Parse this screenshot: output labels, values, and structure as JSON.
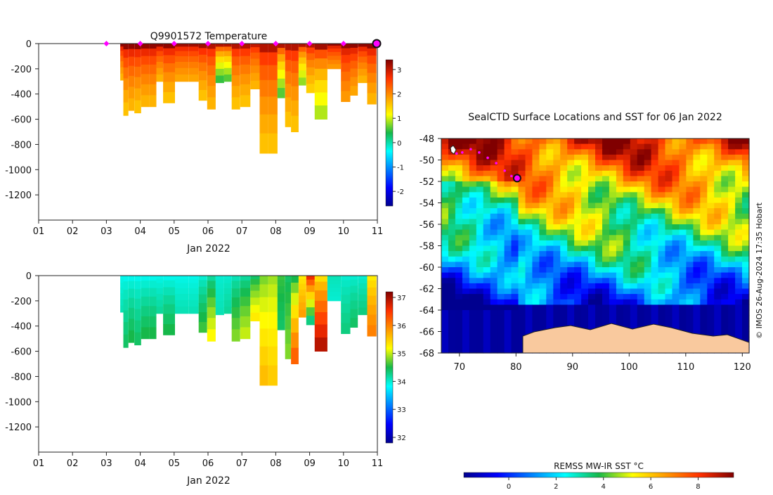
{
  "chart_data": [
    {
      "id": "temperature",
      "type": "heatmap",
      "title": "Q9901572  Temperature",
      "xlabel": "Jan 2022",
      "ylabel": "",
      "x_ticks": [
        "01",
        "02",
        "03",
        "04",
        "05",
        "06",
        "07",
        "08",
        "09",
        "10",
        "11"
      ],
      "y_ticks": [
        "0",
        "-200",
        "-400",
        "-600",
        "-800",
        "-1000",
        "-1200"
      ],
      "xlim": [
        1,
        11
      ],
      "ylim": [
        -1400,
        0
      ],
      "colorbar": {
        "ticks": [
          "3",
          "2",
          "1",
          "0",
          "-1",
          "-2"
        ],
        "range": [
          -2.6,
          3.4
        ]
      },
      "markers_days": [
        3,
        4,
        5,
        6,
        7,
        8,
        9,
        10
      ],
      "current_marker_day": 11,
      "profiles": [
        {
          "day": 3.45,
          "depth": 290,
          "surf": 3.3,
          "deep": 1.7
        },
        {
          "day": 3.55,
          "depth": 570,
          "surf": 3.3,
          "deep": 1.6
        },
        {
          "day": 3.75,
          "depth": 530,
          "surf": 3.3,
          "deep": 1.7
        },
        {
          "day": 3.9,
          "depth": 550,
          "surf": 3.3,
          "deep": 1.6
        },
        {
          "day": 4.15,
          "depth": 500,
          "surf": 3.3,
          "deep": 1.7
        },
        {
          "day": 4.4,
          "depth": 500,
          "surf": 3.3,
          "deep": 1.7
        },
        {
          "day": 4.55,
          "depth": 300,
          "surf": 3.3,
          "deep": 1.7
        },
        {
          "day": 4.8,
          "depth": 470,
          "surf": 3.3,
          "deep": 1.6
        },
        {
          "day": 5.25,
          "depth": 300,
          "surf": 3.2,
          "deep": 1.8
        },
        {
          "day": 5.6,
          "depth": 300,
          "surf": 3.2,
          "deep": 1.8
        },
        {
          "day": 5.85,
          "depth": 450,
          "surf": 3.2,
          "deep": 1.6
        },
        {
          "day": 6.1,
          "depth": 520,
          "surf": 3.1,
          "deep": 1.7
        },
        {
          "day": 6.35,
          "depth": 310,
          "surf": 3.1,
          "deep": 0.5
        },
        {
          "day": 6.6,
          "depth": 300,
          "surf": 3.1,
          "deep": 0.6
        },
        {
          "day": 6.8,
          "depth": 520,
          "surf": 3.1,
          "deep": 1.6
        },
        {
          "day": 7.1,
          "depth": 500,
          "surf": 3.1,
          "deep": 1.6
        },
        {
          "day": 7.4,
          "depth": 360,
          "surf": 3.0,
          "deep": 1.7
        },
        {
          "day": 7.65,
          "depth": 870,
          "surf": 3.1,
          "deep": 1.6
        },
        {
          "day": 7.9,
          "depth": 870,
          "surf": 3.1,
          "deep": 1.6
        },
        {
          "day": 8.2,
          "depth": 430,
          "surf": 3.1,
          "deep": 0.6
        },
        {
          "day": 8.35,
          "depth": 660,
          "surf": 3.1,
          "deep": 1.6
        },
        {
          "day": 8.55,
          "depth": 700,
          "surf": 3.1,
          "deep": 1.6
        },
        {
          "day": 8.8,
          "depth": 330,
          "surf": 3.1,
          "deep": 0.8
        },
        {
          "day": 9.0,
          "depth": 390,
          "surf": 3.1,
          "deep": 1.5
        },
        {
          "day": 9.3,
          "depth": 600,
          "surf": 3.2,
          "deep": 0.9
        },
        {
          "day": 9.75,
          "depth": 200,
          "surf": 3.3,
          "deep": 1.9
        },
        {
          "day": 10.1,
          "depth": 460,
          "surf": 3.3,
          "deep": 1.9
        },
        {
          "day": 10.3,
          "depth": 410,
          "surf": 3.3,
          "deep": 1.8
        },
        {
          "day": 10.55,
          "depth": 310,
          "surf": 3.3,
          "deep": 1.7
        },
        {
          "day": 10.85,
          "depth": 480,
          "surf": 3.3,
          "deep": 1.7
        }
      ]
    },
    {
      "id": "salinity",
      "type": "heatmap",
      "title": "",
      "xlabel": "Jan 2022",
      "ylabel": "",
      "x_ticks": [
        "01",
        "02",
        "03",
        "04",
        "05",
        "06",
        "07",
        "08",
        "09",
        "10",
        "11"
      ],
      "y_ticks": [
        "0",
        "-200",
        "-400",
        "-600",
        "-800",
        "-1000",
        "-1200"
      ],
      "xlim": [
        1,
        11
      ],
      "ylim": [
        -1400,
        0
      ],
      "colorbar": {
        "ticks": [
          "37",
          "36",
          "35",
          "34",
          "33",
          "32"
        ],
        "range": [
          31.8,
          37.2
        ]
      },
      "profiles": [
        {
          "day": 3.45,
          "depth": 290,
          "surf": 33.9,
          "deep": 34.1
        },
        {
          "day": 3.55,
          "depth": 570,
          "surf": 33.9,
          "deep": 34.4
        },
        {
          "day": 3.75,
          "depth": 530,
          "surf": 33.9,
          "deep": 34.5
        },
        {
          "day": 3.9,
          "depth": 550,
          "surf": 33.9,
          "deep": 34.4
        },
        {
          "day": 4.15,
          "depth": 500,
          "surf": 33.9,
          "deep": 34.5
        },
        {
          "day": 4.4,
          "depth": 500,
          "surf": 33.9,
          "deep": 34.5
        },
        {
          "day": 4.55,
          "depth": 300,
          "surf": 33.9,
          "deep": 34.2
        },
        {
          "day": 4.8,
          "depth": 470,
          "surf": 33.9,
          "deep": 34.5
        },
        {
          "day": 5.25,
          "depth": 300,
          "surf": 33.9,
          "deep": 34.1
        },
        {
          "day": 5.6,
          "depth": 300,
          "surf": 33.9,
          "deep": 34.1
        },
        {
          "day": 5.85,
          "depth": 450,
          "surf": 34.0,
          "deep": 34.6
        },
        {
          "day": 6.1,
          "depth": 520,
          "surf": 34.2,
          "deep": 35.2
        },
        {
          "day": 6.35,
          "depth": 310,
          "surf": 34.0,
          "deep": 34.1
        },
        {
          "day": 6.6,
          "depth": 300,
          "surf": 34.0,
          "deep": 34.2
        },
        {
          "day": 6.8,
          "depth": 520,
          "surf": 34.1,
          "deep": 34.8
        },
        {
          "day": 7.1,
          "depth": 500,
          "surf": 34.2,
          "deep": 35.0
        },
        {
          "day": 7.4,
          "depth": 360,
          "surf": 34.4,
          "deep": 35.3
        },
        {
          "day": 7.65,
          "depth": 870,
          "surf": 34.8,
          "deep": 35.6
        },
        {
          "day": 7.9,
          "depth": 870,
          "surf": 34.9,
          "deep": 35.5
        },
        {
          "day": 8.2,
          "depth": 430,
          "surf": 34.6,
          "deep": 34.4
        },
        {
          "day": 8.35,
          "depth": 660,
          "surf": 34.4,
          "deep": 34.8
        },
        {
          "day": 8.55,
          "depth": 700,
          "surf": 34.5,
          "deep": 36.2
        },
        {
          "day": 8.8,
          "depth": 330,
          "surf": 35.3,
          "deep": 35.8
        },
        {
          "day": 9.0,
          "depth": 390,
          "surf": 36.6,
          "deep": 34.3
        },
        {
          "day": 9.3,
          "depth": 600,
          "surf": 35.4,
          "deep": 36.9
        },
        {
          "day": 9.75,
          "depth": 200,
          "surf": 34.1,
          "deep": 34.0
        },
        {
          "day": 10.1,
          "depth": 460,
          "surf": 34.0,
          "deep": 34.3
        },
        {
          "day": 10.3,
          "depth": 410,
          "surf": 34.0,
          "deep": 34.4
        },
        {
          "day": 10.55,
          "depth": 310,
          "surf": 34.0,
          "deep": 34.3
        },
        {
          "day": 10.85,
          "depth": 480,
          "surf": 35.3,
          "deep": 36.0
        }
      ]
    },
    {
      "id": "sst_map",
      "type": "heatmap",
      "title": "SealCTD Surface Locations and SST for 06 Jan 2022",
      "x_ticks": [
        "70",
        "80",
        "90",
        "100",
        "110",
        "120"
      ],
      "y_ticks": [
        "-48",
        "-50",
        "-52",
        "-54",
        "-56",
        "-58",
        "-60",
        "-62",
        "-64",
        "-66",
        "-68"
      ],
      "xlim": [
        66.8,
        121.2
      ],
      "ylim": [
        -68,
        -48
      ],
      "colorbar": {
        "label": "REMSS MW-IR SST °C",
        "ticks": [
          "0",
          "2",
          "4",
          "6",
          "8"
        ],
        "range": [
          -1.9,
          9.5
        ]
      },
      "track": [
        [
          69.5,
          -49.4
        ],
        [
          70.5,
          -49.3
        ],
        [
          72.0,
          -49.0
        ],
        [
          73.5,
          -49.3
        ],
        [
          75.0,
          -49.8
        ],
        [
          76.5,
          -50.3
        ],
        [
          78.0,
          -51.0
        ],
        [
          79.2,
          -51.5
        ],
        [
          80.2,
          -51.7
        ]
      ],
      "current_position": [
        80.2,
        -51.7
      ],
      "credit": "© IMOS 26-Aug-2024 17:35 Hobart"
    }
  ]
}
